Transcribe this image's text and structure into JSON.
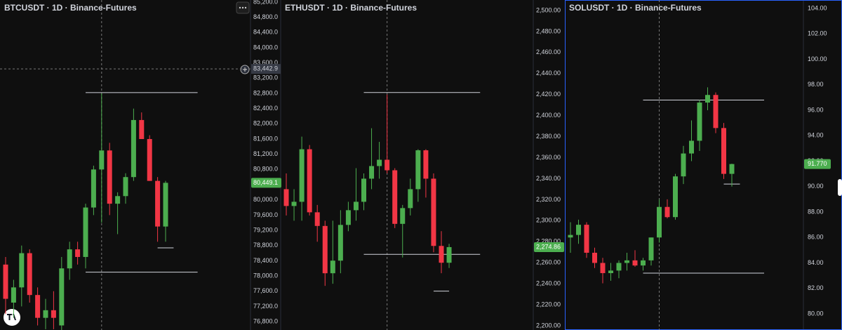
{
  "chart_data": [
    {
      "type": "candlestick",
      "title": "BTCUSDT · 1D · Binance-Futures",
      "categories": [
        null,
        null,
        null,
        null,
        null,
        null,
        null,
        null,
        null,
        null,
        null,
        null,
        null,
        null,
        null,
        null,
        null,
        null,
        null,
        null,
        null
      ],
      "open": [
        78300,
        77300,
        77700,
        78600,
        77500,
        76900,
        77100,
        76700,
        78200,
        78700,
        78500,
        79800,
        80800,
        81300,
        79900,
        80100,
        80600,
        82100,
        81600,
        80500,
        79300
      ],
      "high": [
        78500,
        77900,
        78800,
        78700,
        77700,
        77400,
        77600,
        78500,
        78900,
        78900,
        79900,
        80900,
        82800,
        81500,
        80200,
        80700,
        82400,
        82300,
        81700,
        80600,
        80500
      ],
      "low": [
        77000,
        76900,
        77200,
        77300,
        76700,
        76600,
        76600,
        76500,
        77900,
        78300,
        78200,
        79600,
        79400,
        79600,
        79100,
        79900,
        80500,
        81600,
        80500,
        78900,
        78900
      ],
      "close": [
        77400,
        77700,
        78600,
        77500,
        76900,
        77100,
        76900,
        78200,
        78700,
        78500,
        79800,
        80800,
        81300,
        79900,
        80100,
        80600,
        82100,
        81600,
        80500,
        79300,
        80449.1
      ],
      "up_color": "#4cae4f",
      "down_color": "#f23645",
      "ylim": [
        76580,
        85255
      ],
      "yticks": [
        {
          "value": 85200,
          "label": "85,200.0"
        },
        {
          "value": 84800,
          "label": "84,800.0"
        },
        {
          "value": 84400,
          "label": "84,400.0"
        },
        {
          "value": 84000,
          "label": "84,000.0"
        },
        {
          "value": 83600,
          "label": "83,600.0"
        },
        {
          "value": 83200,
          "label": "83,200.0"
        },
        {
          "value": 82800,
          "label": "82,800.0"
        },
        {
          "value": 82400,
          "label": "82,400.0"
        },
        {
          "value": 82000,
          "label": "82,000.0"
        },
        {
          "value": 81600,
          "label": "81,600.0"
        },
        {
          "value": 81200,
          "label": "81,200.0"
        },
        {
          "value": 80800,
          "label": "80,800.0"
        },
        {
          "value": 80400,
          "label": "80,400.0"
        },
        {
          "value": 80000,
          "label": "80,000.0"
        },
        {
          "value": 79600,
          "label": "79,600.0"
        },
        {
          "value": 79200,
          "label": "79,200.0"
        },
        {
          "value": 78800,
          "label": "78,800.0"
        },
        {
          "value": 78400,
          "label": "78,400.0"
        },
        {
          "value": 78000,
          "label": "78,000.0"
        },
        {
          "value": 77600,
          "label": "77,600.0"
        },
        {
          "value": 77200,
          "label": "77,200.0"
        },
        {
          "value": 76800,
          "label": "76,800.0"
        }
      ],
      "last_price": {
        "value": 80449.1,
        "label": "80,449.1"
      },
      "crosshair": {
        "value": 83442.9,
        "label": "83,442.9"
      },
      "hlines": [
        82820,
        78100,
        78740
      ]
    },
    {
      "type": "candlestick",
      "title": "ETHUSDT · 1D · Binance-Futures",
      "categories": [
        null,
        null,
        null,
        null,
        null,
        null,
        null,
        null,
        null,
        null,
        null,
        null,
        null,
        null,
        null,
        null,
        null,
        null,
        null,
        null,
        null,
        null
      ],
      "open": [
        2330,
        2314,
        2318,
        2368,
        2308,
        2295,
        2250,
        2262,
        2296,
        2310,
        2318,
        2340,
        2352,
        2358,
        2348,
        2297,
        2312,
        2330,
        2367,
        2340,
        2276,
        2260
      ],
      "high": [
        2345,
        2330,
        2380,
        2372,
        2315,
        2300,
        2300,
        2310,
        2318,
        2350,
        2345,
        2388,
        2375,
        2420,
        2350,
        2315,
        2340,
        2368,
        2368,
        2345,
        2290,
        2278
      ],
      "low": [
        2305,
        2300,
        2300,
        2305,
        2280,
        2238,
        2240,
        2250,
        2290,
        2300,
        2310,
        2330,
        2340,
        2345,
        2293,
        2265,
        2305,
        2318,
        2322,
        2270,
        2250,
        2255
      ],
      "close": [
        2314,
        2318,
        2368,
        2308,
        2295,
        2250,
        2262,
        2296,
        2310,
        2318,
        2340,
        2352,
        2358,
        2348,
        2297,
        2312,
        2330,
        2367,
        2340,
        2276,
        2260,
        2274.86
      ],
      "up_color": "#4cae4f",
      "down_color": "#f23645",
      "ylim": [
        2196,
        2510
      ],
      "yticks": [
        {
          "value": 2500,
          "label": "2,500.00"
        },
        {
          "value": 2480,
          "label": "2,480.00"
        },
        {
          "value": 2460,
          "label": "2,460.00"
        },
        {
          "value": 2440,
          "label": "2,440.00"
        },
        {
          "value": 2420,
          "label": "2,420.00"
        },
        {
          "value": 2400,
          "label": "2,400.00"
        },
        {
          "value": 2380,
          "label": "2,380.00"
        },
        {
          "value": 2360,
          "label": "2,360.00"
        },
        {
          "value": 2340,
          "label": "2,340.00"
        },
        {
          "value": 2320,
          "label": "2,320.00"
        },
        {
          "value": 2300,
          "label": "2,300.00"
        },
        {
          "value": 2280,
          "label": "2,280.00"
        },
        {
          "value": 2260,
          "label": "2,260.00"
        },
        {
          "value": 2240,
          "label": "2,240.00"
        },
        {
          "value": 2220,
          "label": "2,220.00"
        },
        {
          "value": 2200,
          "label": "2,200.00"
        }
      ],
      "last_price": {
        "value": 2274.86,
        "label": "2,274.86"
      },
      "hlines": [
        2422,
        2268,
        2233
      ]
    },
    {
      "type": "candlestick",
      "title": "SOLUSDT · 1D · Binance-Futures",
      "categories": [
        null,
        null,
        null,
        null,
        null,
        null,
        null,
        null,
        null,
        null,
        null,
        null,
        null,
        null,
        null,
        null,
        null,
        null,
        null,
        null,
        null
      ],
      "open": [
        86.0,
        86.2,
        87.0,
        84.8,
        84.0,
        83.2,
        83.4,
        84.0,
        84.2,
        83.8,
        84.2,
        86.0,
        88.4,
        87.6,
        90.8,
        92.6,
        93.6,
        96.6,
        97.2,
        94.6,
        91.0
      ],
      "high": [
        87.2,
        87.4,
        87.2,
        85.2,
        84.4,
        84.0,
        84.2,
        84.8,
        85.0,
        84.4,
        86.0,
        89.0,
        89.0,
        91.0,
        93.2,
        95.2,
        96.8,
        97.8,
        97.4,
        95.0,
        91.8
      ],
      "low": [
        84.8,
        85.5,
        84.4,
        83.6,
        82.4,
        82.6,
        82.8,
        83.4,
        83.7,
        83.4,
        83.8,
        85.6,
        87.5,
        87.4,
        90.2,
        92.0,
        92.8,
        96.0,
        94.2,
        90.6,
        90.0
      ],
      "close": [
        86.2,
        87.0,
        84.8,
        84.0,
        83.2,
        83.4,
        84.0,
        84.2,
        83.8,
        84.2,
        86.0,
        88.4,
        87.6,
        90.8,
        92.6,
        93.6,
        96.6,
        97.2,
        94.6,
        91.0,
        91.77
      ],
      "up_color": "#4cae4f",
      "down_color": "#f23645",
      "ylim": [
        78.73,
        104.66
      ],
      "yticks": [
        {
          "value": 104,
          "label": "104.00"
        },
        {
          "value": 102,
          "label": "102.00"
        },
        {
          "value": 100,
          "label": "100.00"
        },
        {
          "value": 98,
          "label": "98.00"
        },
        {
          "value": 96,
          "label": "96.00"
        },
        {
          "value": 94,
          "label": "94.00"
        },
        {
          "value": 92,
          "label": "92.00"
        },
        {
          "value": 90,
          "label": "90.00"
        },
        {
          "value": 88,
          "label": "88.00"
        },
        {
          "value": 86,
          "label": "86.00"
        },
        {
          "value": 84,
          "label": "84.00"
        },
        {
          "value": 82,
          "label": "82.00"
        },
        {
          "value": 80,
          "label": "80.00"
        }
      ],
      "last_price": {
        "value": 91.77,
        "label": "91.770"
      },
      "hlines": [
        96.8,
        83.2,
        90.2
      ]
    }
  ]
}
